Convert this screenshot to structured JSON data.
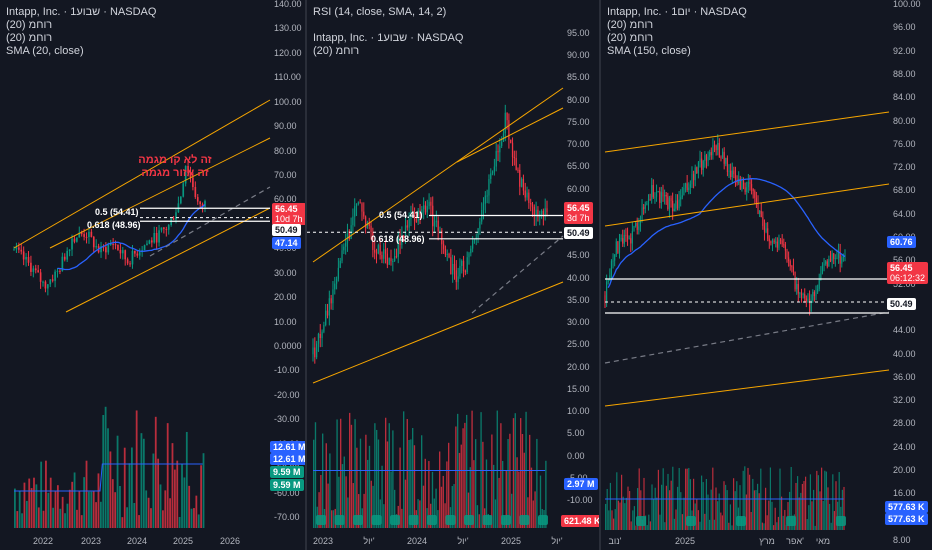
{
  "panels": [
    {
      "id": "left",
      "legend": [
        "Intapp, Inc. · 1שבוע · NASDAQ",
        "רוחמ (20)",
        "רוחמ (20)",
        "SMA (20, close)"
      ],
      "annotation": [
        "זה לא קו מגמה",
        "זה אזור מגמה"
      ],
      "fib": [
        {
          "label": "0.5 (54.41)",
          "value": 54.41
        },
        {
          "label": "0.618 (48.96)",
          "value": 48.96
        }
      ],
      "price_axis": [
        "140.00",
        "130.00",
        "120.00",
        "110.00",
        "100.00",
        "90.00",
        "80.00",
        "70.00",
        "60.00",
        "50.00",
        "40.00",
        "30.00",
        "20.00",
        "10.00",
        "0.0000",
        "-10.00",
        "-20.00",
        "-30.00",
        "-40.00",
        "-50.00",
        "-60.00",
        "-70.00"
      ],
      "tags": [
        {
          "text": "56.45",
          "sub": "10d 7h",
          "color": "red"
        },
        {
          "text": "50.49",
          "color": "white"
        },
        {
          "text": "47.14",
          "color": "blue"
        },
        {
          "text": "12.61 M",
          "color": "blue"
        },
        {
          "text": "12.61 M",
          "color": "blue"
        },
        {
          "text": "9.59 M",
          "color": "green"
        },
        {
          "text": "9.59 M",
          "color": "green"
        }
      ],
      "x_labels": [
        "2022",
        "2023",
        "2024",
        "2025",
        "2026"
      ]
    },
    {
      "id": "middle",
      "legend": [
        "RSI (14, close, SMA, 14, 2)",
        "",
        "Intapp, Inc. · 1שבוע · NASDAQ",
        "רוחמ (20)"
      ],
      "fib": [
        {
          "label": "0.5 (54.41)",
          "value": 54.41
        },
        {
          "label": "0.618 (48.96)",
          "value": 48.96
        }
      ],
      "price_axis": [
        "95.00",
        "90.00",
        "85.00",
        "80.00",
        "75.00",
        "70.00",
        "65.00",
        "60.00",
        "55.00",
        "50.00",
        "45.00",
        "40.00",
        "35.00",
        "30.00",
        "25.00",
        "20.00",
        "15.00",
        "10.00",
        "5.00",
        "0.00",
        "-5.00",
        "-10.00"
      ],
      "tags": [
        {
          "text": "56.45",
          "sub": "3d 7h",
          "color": "red"
        },
        {
          "text": "50.49",
          "color": "white"
        },
        {
          "text": "2.97 M",
          "color": "blue"
        },
        {
          "text": "621.48 K",
          "color": "red"
        }
      ],
      "x_labels": [
        "2023",
        "יול'",
        "2024",
        "יול'",
        "2025",
        "יול'"
      ]
    },
    {
      "id": "right",
      "legend": [
        "Intapp, Inc. · 1יום · NASDAQ",
        "רוחמ (20)",
        "רוחמ (20)",
        "SMA (150, close)"
      ],
      "price_axis": [
        "100.00",
        "96.00",
        "92.00",
        "88.00",
        "84.00",
        "80.00",
        "76.00",
        "72.00",
        "68.00",
        "64.00",
        "60.00",
        "56.00",
        "52.00",
        "48.00",
        "44.00",
        "40.00",
        "36.00",
        "32.00",
        "28.00",
        "24.00",
        "20.00",
        "16.00",
        "12.00",
        "8.00"
      ],
      "tags": [
        {
          "text": "60.76",
          "color": "blue"
        },
        {
          "text": "56.45",
          "sub": "06:12:32",
          "color": "red"
        },
        {
          "text": "50.49",
          "color": "white"
        },
        {
          "text": "577.63 K",
          "color": "blue"
        },
        {
          "text": "577.63 K",
          "color": "blue"
        }
      ],
      "x_labels": [
        "נוב'",
        "2025",
        "מרץ",
        "אפר'",
        "מאי"
      ]
    }
  ],
  "colors": {
    "background": "#131722",
    "up": "#089981",
    "down": "#f23645",
    "channel": "#f7a600",
    "sma": "#2962ff",
    "fib": "#ffffff",
    "trend_dash": "#787b86"
  },
  "chart_data": [
    {
      "type": "candlestick",
      "panel": "left",
      "timeframe": "weekly",
      "x": [
        "2022",
        "2023",
        "2024",
        "2025"
      ],
      "price_path": [
        [
          2021.9,
          37
        ],
        [
          2022.2,
          30
        ],
        [
          2022.45,
          22
        ],
        [
          2022.7,
          28
        ],
        [
          2022.95,
          42
        ],
        [
          2023.2,
          44
        ],
        [
          2023.45,
          36
        ],
        [
          2023.7,
          40
        ],
        [
          2023.95,
          32
        ],
        [
          2024.2,
          38
        ],
        [
          2024.45,
          42
        ],
        [
          2024.7,
          47
        ],
        [
          2024.9,
          58
        ],
        [
          2025.0,
          73
        ],
        [
          2025.12,
          65
        ],
        [
          2025.25,
          54
        ],
        [
          2025.35,
          56.45
        ]
      ],
      "last": 56.45,
      "sma20_last": 47.14,
      "ylim": [
        -75,
        140
      ]
    },
    {
      "type": "candlestick",
      "panel": "middle",
      "timeframe": "weekly",
      "x": [
        "2023",
        "יול'",
        "2024",
        "יול'",
        "2025",
        "יול'"
      ],
      "price_path": [
        [
          2022.95,
          22
        ],
        [
          2023.1,
          32
        ],
        [
          2023.3,
          47
        ],
        [
          2023.45,
          58
        ],
        [
          2023.6,
          48
        ],
        [
          2023.8,
          44
        ],
        [
          2024.0,
          53
        ],
        [
          2024.2,
          57
        ],
        [
          2024.35,
          48
        ],
        [
          2024.5,
          40
        ],
        [
          2024.65,
          44
        ],
        [
          2024.85,
          60
        ],
        [
          2025.05,
          77
        ],
        [
          2025.15,
          66
        ],
        [
          2025.35,
          54
        ],
        [
          2025.5,
          56.45
        ]
      ],
      "last": 56.45,
      "ylim": [
        -12,
        97
      ]
    },
    {
      "type": "candlestick",
      "panel": "right",
      "timeframe": "daily",
      "x": [
        "נוב'",
        "2025",
        "מרץ",
        "אפר'",
        "מאי"
      ],
      "price_path": [
        [
          0,
          50
        ],
        [
          8,
          58
        ],
        [
          22,
          60
        ],
        [
          40,
          68
        ],
        [
          60,
          65
        ],
        [
          80,
          72
        ],
        [
          95,
          76
        ],
        [
          110,
          70
        ],
        [
          125,
          68
        ],
        [
          140,
          60
        ],
        [
          155,
          58
        ],
        [
          165,
          50
        ],
        [
          175,
          48
        ],
        [
          185,
          54
        ],
        [
          195,
          57
        ],
        [
          205,
          56.45
        ]
      ],
      "last": 56.45,
      "sma150_last": 60.76,
      "ylim": [
        8,
        100
      ]
    }
  ]
}
